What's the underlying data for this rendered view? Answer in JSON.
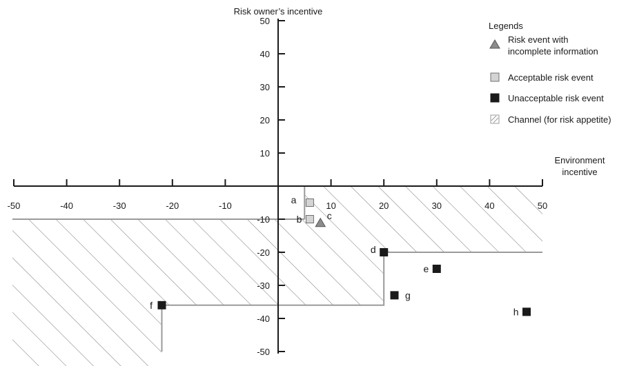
{
  "chart_data": {
    "type": "scatter",
    "xlabel": [
      "Environment",
      "incentive"
    ],
    "ylabel": "Risk owner’s incentive",
    "xlim": [
      -50,
      50
    ],
    "ylim": [
      -50,
      50
    ],
    "x_ticks": [
      -50,
      -40,
      -30,
      -20,
      -10,
      10,
      20,
      30,
      40,
      50
    ],
    "y_ticks": [
      50,
      40,
      30,
      20,
      10,
      -10,
      -20,
      -30,
      -40,
      -50
    ],
    "grid": false,
    "legend": {
      "title": "Legends",
      "placement": "top-right",
      "entries": [
        {
          "marker": "triangle",
          "color": "#8c8c8c",
          "lines": [
            "Risk event with",
            "incomplete information"
          ]
        },
        {
          "marker": "square",
          "color": "#d4d4d4",
          "lines": [
            "Acceptable risk event"
          ]
        },
        {
          "marker": "square",
          "color": "#1a1a1a",
          "lines": [
            "Unacceptable risk event"
          ]
        },
        {
          "marker": "hatch",
          "color": "#9a9a9a",
          "lines": [
            "Channel (for risk appetite)"
          ]
        }
      ]
    },
    "points": [
      {
        "label": "a",
        "x": 6,
        "y": -5,
        "category": "acceptable"
      },
      {
        "label": "b",
        "x": 6,
        "y": -10,
        "category": "acceptable"
      },
      {
        "label": "c",
        "x": 8,
        "y": -11,
        "category": "incomplete"
      },
      {
        "label": "d",
        "x": 20,
        "y": -20,
        "category": "unacceptable"
      },
      {
        "label": "e",
        "x": 30,
        "y": -25,
        "category": "unacceptable"
      },
      {
        "label": "f",
        "x": -22,
        "y": -36,
        "category": "unacceptable"
      },
      {
        "label": "g",
        "x": 22,
        "y": -33,
        "category": "unacceptable"
      },
      {
        "label": "h",
        "x": 47,
        "y": -38,
        "category": "unacceptable"
      }
    ],
    "channel_boundary": [
      [
        -50,
        -10
      ],
      [
        5,
        -10
      ],
      [
        5,
        0
      ],
      [
        50,
        0
      ],
      [
        50,
        -20
      ],
      [
        20,
        -20
      ],
      [
        20,
        -36
      ],
      [
        -22,
        -36
      ],
      [
        -22,
        -50
      ]
    ],
    "colors": {
      "axis": "#1a1a1a",
      "channel_line": "#9a9a9a",
      "hatch": "#8a8a8a",
      "acceptable": "#d4d4d4",
      "unacceptable": "#1a1a1a",
      "incomplete": "#8c8c8c"
    }
  }
}
